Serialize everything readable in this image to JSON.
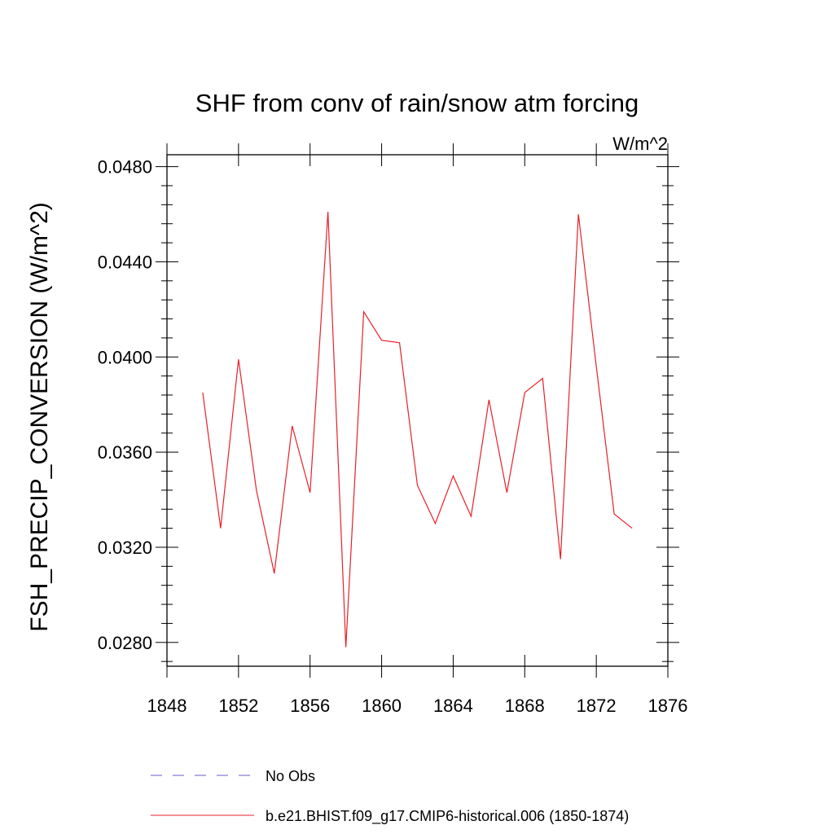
{
  "chart_data": {
    "type": "line",
    "title": "SHF from conv of rain/snow atm forcing",
    "units_label": "W/m^2",
    "xlabel": "",
    "ylabel": "FSH_PRECIP_CONVERSION  (W/m^2)",
    "xlim": [
      1848,
      1876
    ],
    "ylim": [
      0.027,
      0.0485
    ],
    "x_ticks": [
      "1848",
      "1852",
      "1856",
      "1860",
      "1864",
      "1868",
      "1872",
      "1876"
    ],
    "y_ticks": [
      "0.0280",
      "0.0320",
      "0.0360",
      "0.0400",
      "0.0440",
      "0.0480"
    ],
    "grid": false,
    "series": [
      {
        "name": "b.e21.BHIST.f09_g17.CMIP6-historical.006 (1850-1874)",
        "color": "#e8202a",
        "style": "solid",
        "x": [
          1850,
          1851,
          1852,
          1853,
          1854,
          1855,
          1856,
          1857,
          1858,
          1859,
          1860,
          1861,
          1862,
          1863,
          1864,
          1865,
          1866,
          1867,
          1868,
          1869,
          1870,
          1871,
          1872,
          1873,
          1874
        ],
        "y": [
          0.0385,
          0.0328,
          0.0399,
          0.0344,
          0.0309,
          0.0371,
          0.0343,
          0.0461,
          0.0278,
          0.0419,
          0.0407,
          0.0406,
          0.0346,
          0.033,
          0.035,
          0.0333,
          0.0382,
          0.0343,
          0.0385,
          0.0391,
          0.0315,
          0.046,
          0.0396,
          0.0334,
          0.0328
        ]
      }
    ],
    "legend": [
      {
        "label": "No Obs",
        "color": "#6a5acd",
        "style": "dashed"
      },
      {
        "label": "b.e21.BHIST.f09_g17.CMIP6-historical.006 (1850-1874)",
        "color": "#e8202a",
        "style": "solid"
      }
    ],
    "legend_position": "bottom-left"
  }
}
